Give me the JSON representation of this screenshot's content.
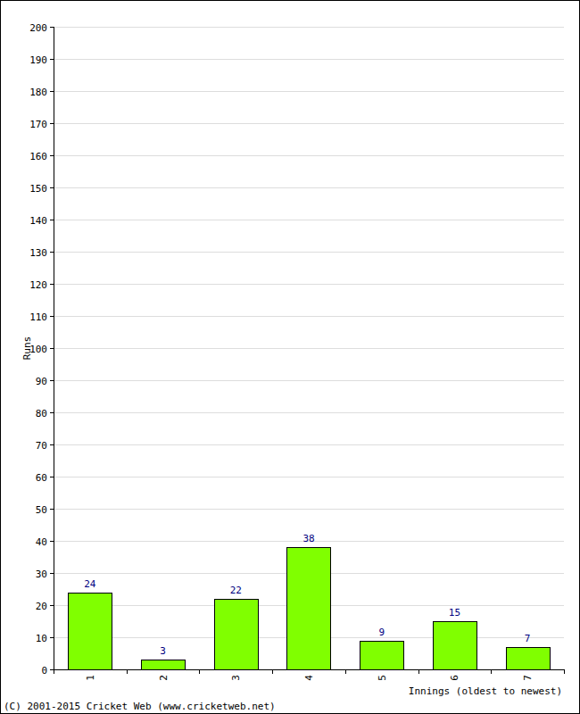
{
  "chart_data": {
    "type": "bar",
    "x_label": "Innings (oldest to newest)",
    "y_label": "Runs",
    "annotations": [
      "(C) 2001-2015 Cricket Web (www.cricketweb.net)"
    ],
    "categories": [
      "1",
      "2",
      "3",
      "4",
      "5",
      "6",
      "7"
    ],
    "values": [
      24,
      3,
      22,
      38,
      9,
      15,
      7
    ],
    "color": "#80ff00",
    "ylim": [
      0,
      200
    ],
    "yticks": [
      0,
      10,
      20,
      30,
      40,
      50,
      60,
      70,
      80,
      90,
      100,
      110,
      120,
      130,
      140,
      150,
      160,
      170,
      180,
      190,
      200
    ],
    "grid": true,
    "data_labels": true
  }
}
